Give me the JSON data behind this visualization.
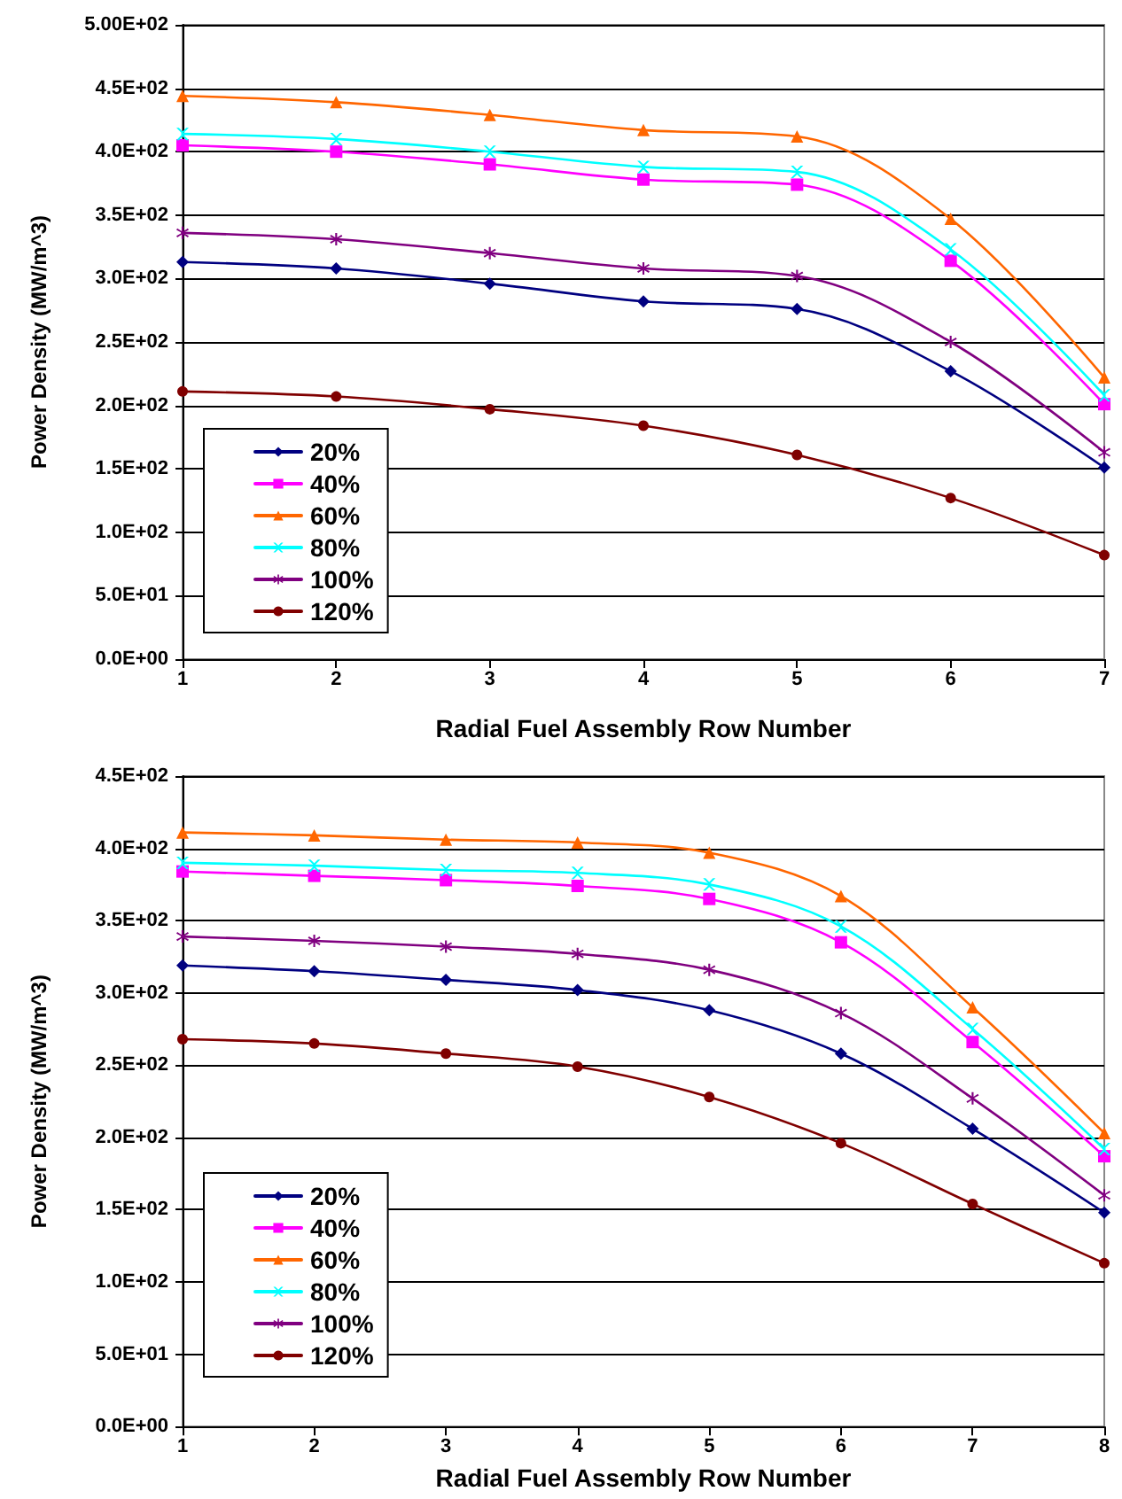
{
  "chart_data": [
    {
      "type": "line",
      "xlabel": "Radial Fuel Assembly Row Number",
      "ylabel": "Power Density (MW/m^3)",
      "x": [
        1,
        2,
        3,
        4,
        5,
        6,
        7
      ],
      "xlim": [
        1,
        7
      ],
      "xticks": [
        1,
        2,
        3,
        4,
        5,
        6,
        7
      ],
      "ylim": [
        0,
        500
      ],
      "yticks": [
        {
          "value": 0,
          "label": "0.0E+00"
        },
        {
          "value": 50,
          "label": "5.0E+01"
        },
        {
          "value": 100,
          "label": "1.0E+02"
        },
        {
          "value": 150,
          "label": "1.5E+02"
        },
        {
          "value": 200,
          "label": "2.0E+02"
        },
        {
          "value": 250,
          "label": "2.5E+02"
        },
        {
          "value": 300,
          "label": "3.0E+02"
        },
        {
          "value": 350,
          "label": "3.5E+02"
        },
        {
          "value": 400,
          "label": "4.0E+02"
        },
        {
          "value": 450,
          "label": "4.5E+02"
        },
        {
          "value": 500,
          "label": "5.00E+02"
        }
      ],
      "grid": "y",
      "legend": "bottom left",
      "series": [
        {
          "name": "20%",
          "color": "#000080",
          "marker": "diamond",
          "values": [
            313,
            308,
            296,
            282,
            276,
            227,
            151
          ]
        },
        {
          "name": "40%",
          "color": "#ff00ff",
          "marker": "square",
          "values": [
            405,
            400,
            390,
            378,
            374,
            314,
            201
          ]
        },
        {
          "name": "60%",
          "color": "#ff6600",
          "marker": "triangle",
          "values": [
            444,
            439,
            429,
            417,
            412,
            347,
            222
          ]
        },
        {
          "name": "80%",
          "color": "#00ffff",
          "marker": "cross",
          "values": [
            414,
            410,
            400,
            388,
            384,
            323,
            208
          ]
        },
        {
          "name": "100%",
          "color": "#800080",
          "marker": "star",
          "values": [
            336,
            331,
            320,
            308,
            302,
            250,
            163
          ]
        },
        {
          "name": "120%",
          "color": "#800000",
          "marker": "circle",
          "values": [
            211,
            207,
            197,
            184,
            161,
            127,
            82
          ]
        }
      ]
    },
    {
      "type": "line",
      "xlabel": "Radial Fuel Assembly Row Number",
      "ylabel": "Power Density (MW/m^3)",
      "x": [
        1,
        2,
        3,
        4,
        5,
        6,
        7,
        8
      ],
      "xlim": [
        1,
        8
      ],
      "xticks": [
        1,
        2,
        3,
        4,
        5,
        6,
        7,
        8
      ],
      "ylim": [
        0,
        450
      ],
      "yticks": [
        {
          "value": 0,
          "label": "0.0E+00"
        },
        {
          "value": 50,
          "label": "5.0E+01"
        },
        {
          "value": 100,
          "label": "1.0E+02"
        },
        {
          "value": 150,
          "label": "1.5E+02"
        },
        {
          "value": 200,
          "label": "2.0E+02"
        },
        {
          "value": 250,
          "label": "2.5E+02"
        },
        {
          "value": 300,
          "label": "3.0E+02"
        },
        {
          "value": 350,
          "label": "3.5E+02"
        },
        {
          "value": 400,
          "label": "4.0E+02"
        },
        {
          "value": 450,
          "label": "4.5E+02"
        }
      ],
      "grid": "y",
      "legend": "bottom left",
      "series": [
        {
          "name": "20%",
          "color": "#000080",
          "marker": "diamond",
          "values": [
            319,
            315,
            309,
            302,
            288,
            258,
            206,
            148
          ]
        },
        {
          "name": "40%",
          "color": "#ff00ff",
          "marker": "square",
          "values": [
            384,
            381,
            378,
            374,
            365,
            335,
            266,
            187
          ]
        },
        {
          "name": "60%",
          "color": "#ff6600",
          "marker": "triangle",
          "values": [
            411,
            409,
            406,
            404,
            397,
            367,
            290,
            203
          ]
        },
        {
          "name": "80%",
          "color": "#00ffff",
          "marker": "cross",
          "values": [
            390,
            388,
            385,
            383,
            375,
            346,
            275,
            192
          ]
        },
        {
          "name": "100%",
          "color": "#800080",
          "marker": "star",
          "values": [
            339,
            336,
            332,
            327,
            316,
            286,
            227,
            160
          ]
        },
        {
          "name": "120%",
          "color": "#800000",
          "marker": "circle",
          "values": [
            268,
            265,
            258,
            249,
            228,
            196,
            154,
            113
          ]
        }
      ]
    }
  ]
}
